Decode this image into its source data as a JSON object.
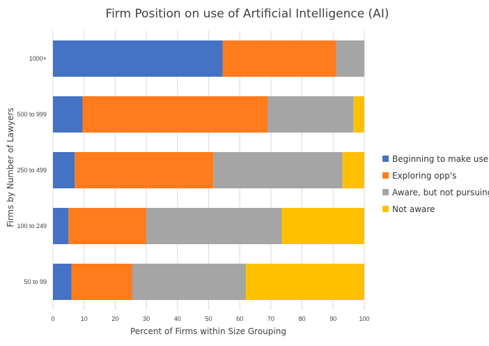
{
  "chart_data": {
    "type": "bar",
    "orientation": "horizontal",
    "stacked": true,
    "title": "Firm Position on use of Artificial Intelligence (AI)",
    "xlabel": "Percent of Firms within Size Grouping",
    "ylabel": "Firms by Number of Lawyers",
    "xlim": [
      0,
      100
    ],
    "x_ticks": [
      "0",
      "10",
      "20",
      "30",
      "40",
      "50",
      "60",
      "70",
      "80",
      "90",
      "100"
    ],
    "grid": true,
    "legend_position": "right",
    "categories": [
      "1000+",
      "500 to 999",
      "250 to 499",
      "100 to 249",
      "50 to 99"
    ],
    "series": [
      {
        "name": "Beginning to make use",
        "color": "#4472C4",
        "values": [
          54.5,
          9.5,
          7,
          5,
          6
        ]
      },
      {
        "name": "Exploring opp's",
        "color": "#FF7B1C",
        "values": [
          36.5,
          59.5,
          44.5,
          25,
          19.5
        ]
      },
      {
        "name": "Aware, but not pursuing",
        "color": "#A5A5A5",
        "values": [
          9,
          27.5,
          41.5,
          43.5,
          36.5
        ]
      },
      {
        "name": "Not aware",
        "color": "#FFC000",
        "values": [
          0,
          3.5,
          7,
          26.5,
          38
        ]
      }
    ]
  }
}
